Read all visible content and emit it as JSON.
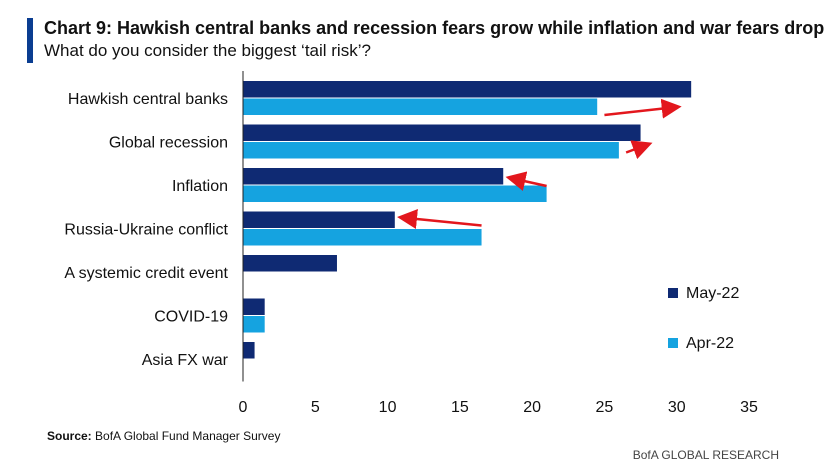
{
  "header": {
    "title": "Chart 9: Hawkish central banks and recession fears grow while inflation and war fears drop",
    "subtitle": "What do you consider the biggest ‘tail risk’?"
  },
  "source": {
    "label": "Source:",
    "text": " BofA Global Fund Manager Survey"
  },
  "footer": {
    "brand": "BofA GLOBAL RESEARCH"
  },
  "colors": {
    "accent": "#0a3d91",
    "may": "#0f2a73",
    "apr": "#15a3e0",
    "arrow": "#e3171d"
  },
  "chart_data": {
    "type": "bar",
    "orientation": "horizontal",
    "title": "Chart 9: Hawkish central banks and recession fears grow while inflation and war fears drop",
    "subtitle": "What do you consider the biggest ‘tail risk’?",
    "categories": [
      "Hawkish central banks",
      "Global recession",
      "Inflation",
      "Russia-Ukraine conflict",
      "A systemic credit event",
      "COVID-19",
      "Asia FX war"
    ],
    "series": [
      {
        "name": "May-22",
        "values": [
          31,
          27.5,
          18,
          10.5,
          6.5,
          1.5,
          0.8
        ]
      },
      {
        "name": "Apr-22",
        "values": [
          24.5,
          26,
          21,
          16.5,
          null,
          1.5,
          null
        ]
      }
    ],
    "xlim": [
      0,
      35
    ],
    "xticks": [
      0,
      5,
      10,
      15,
      20,
      25,
      30,
      35
    ],
    "legend": [
      "May-22",
      "Apr-22"
    ],
    "legend_position": "right",
    "annotations": [
      {
        "type": "arrow",
        "category": "Hawkish central banks",
        "from_value": 25,
        "to_value": 30
      },
      {
        "type": "arrow",
        "category": "Global recession",
        "from_value": 26.5,
        "to_value": 28
      },
      {
        "type": "arrow",
        "category": "Inflation",
        "from_value": 21,
        "to_value": 18.5
      },
      {
        "type": "arrow",
        "category": "Russia-Ukraine conflict",
        "from_value": 16.5,
        "to_value": 11
      }
    ],
    "xlabel": "",
    "ylabel": ""
  }
}
